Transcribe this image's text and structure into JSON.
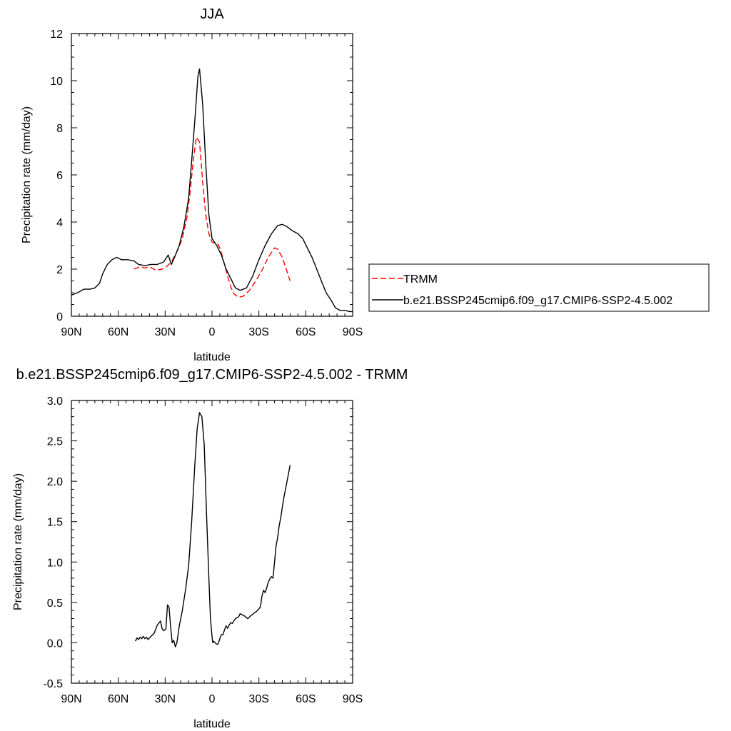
{
  "chart_data": [
    {
      "type": "line",
      "title": "JJA",
      "xlabel": "latitude",
      "ylabel": "Precipitation rate (mm/day)",
      "xlim": [
        90,
        -90
      ],
      "ylim": [
        0,
        12
      ],
      "x_ticks": [
        {
          "value": 90,
          "label": "90N"
        },
        {
          "value": 60,
          "label": "60N"
        },
        {
          "value": 30,
          "label": "30N"
        },
        {
          "value": 0,
          "label": "0"
        },
        {
          "value": -30,
          "label": "30S"
        },
        {
          "value": -60,
          "label": "60S"
        },
        {
          "value": -90,
          "label": "90S"
        }
      ],
      "y_ticks": [
        {
          "value": 0,
          "label": "0"
        },
        {
          "value": 2,
          "label": "2"
        },
        {
          "value": 4,
          "label": "4"
        },
        {
          "value": 6,
          "label": "6"
        },
        {
          "value": 8,
          "label": "8"
        },
        {
          "value": 10,
          "label": "10"
        },
        {
          "value": 12,
          "label": "12"
        }
      ],
      "grid": false,
      "legend_position": "right",
      "series": [
        {
          "name": "TRMM",
          "color": "#ff0000",
          "dash": true,
          "points": [
            [
              50,
              2.0
            ],
            [
              46,
              2.1
            ],
            [
              43,
              2.05
            ],
            [
              40,
              2.1
            ],
            [
              36,
              1.95
            ],
            [
              32,
              2.0
            ],
            [
              30,
              2.05
            ],
            [
              26,
              2.3
            ],
            [
              22,
              2.8
            ],
            [
              19,
              3.3
            ],
            [
              16,
              4.2
            ],
            [
              14,
              5.3
            ],
            [
              12,
              6.6
            ],
            [
              10,
              7.6
            ],
            [
              8,
              7.4
            ],
            [
              6,
              5.7
            ],
            [
              4,
              4.3
            ],
            [
              2,
              3.5
            ],
            [
              0,
              3.15
            ],
            [
              -2,
              3.1
            ],
            [
              -4,
              3.05
            ],
            [
              -6,
              2.7
            ],
            [
              -8,
              2.2
            ],
            [
              -10,
              1.7
            ],
            [
              -12,
              1.25
            ],
            [
              -14,
              0.95
            ],
            [
              -17,
              0.8
            ],
            [
              -20,
              0.85
            ],
            [
              -24,
              1.1
            ],
            [
              -28,
              1.5
            ],
            [
              -32,
              1.95
            ],
            [
              -36,
              2.5
            ],
            [
              -40,
              2.9
            ],
            [
              -42,
              2.85
            ],
            [
              -45,
              2.5
            ],
            [
              -48,
              1.9
            ],
            [
              -50,
              1.5
            ]
          ]
        },
        {
          "name": "b.e21.BSSP245cmip6.f09_g17.CMIP6-SSP2-4.5.002",
          "color": "#000000",
          "dash": false,
          "points": [
            [
              90,
              0.9
            ],
            [
              86,
              1.0
            ],
            [
              82,
              1.15
            ],
            [
              78,
              1.15
            ],
            [
              75,
              1.2
            ],
            [
              72,
              1.4
            ],
            [
              70,
              1.8
            ],
            [
              67,
              2.2
            ],
            [
              64,
              2.4
            ],
            [
              61,
              2.5
            ],
            [
              58,
              2.4
            ],
            [
              54,
              2.4
            ],
            [
              50,
              2.35
            ],
            [
              47,
              2.2
            ],
            [
              43,
              2.15
            ],
            [
              39,
              2.2
            ],
            [
              35,
              2.2
            ],
            [
              31,
              2.3
            ],
            [
              28,
              2.6
            ],
            [
              26,
              2.2
            ],
            [
              24,
              2.5
            ],
            [
              21,
              3.0
            ],
            [
              18,
              3.8
            ],
            [
              15,
              5.0
            ],
            [
              13,
              6.6
            ],
            [
              11,
              8.3
            ],
            [
              9,
              10.2
            ],
            [
              8,
              10.5
            ],
            [
              6,
              9.0
            ],
            [
              4,
              6.5
            ],
            [
              2,
              4.3
            ],
            [
              0,
              3.3
            ],
            [
              -3,
              3.0
            ],
            [
              -6,
              2.6
            ],
            [
              -9,
              2.0
            ],
            [
              -12,
              1.6
            ],
            [
              -15,
              1.2
            ],
            [
              -18,
              1.1
            ],
            [
              -22,
              1.2
            ],
            [
              -26,
              1.7
            ],
            [
              -30,
              2.4
            ],
            [
              -34,
              3.0
            ],
            [
              -38,
              3.5
            ],
            [
              -42,
              3.85
            ],
            [
              -45,
              3.9
            ],
            [
              -48,
              3.8
            ],
            [
              -51,
              3.65
            ],
            [
              -55,
              3.5
            ],
            [
              -58,
              3.3
            ],
            [
              -61,
              2.9
            ],
            [
              -64,
              2.5
            ],
            [
              -67,
              2.0
            ],
            [
              -70,
              1.5
            ],
            [
              -73,
              1.0
            ],
            [
              -76,
              0.7
            ],
            [
              -79,
              0.35
            ],
            [
              -82,
              0.25
            ],
            [
              -85,
              0.25
            ],
            [
              -88,
              0.2
            ],
            [
              -90,
              0.2
            ]
          ]
        }
      ]
    },
    {
      "type": "line",
      "title": "b.e21.BSSP245cmip6.f09_g17.CMIP6-SSP2-4.5.002 - TRMM",
      "xlabel": "latitude",
      "ylabel": "Precipitation rate (mm/day)",
      "xlim": [
        90,
        -90
      ],
      "ylim": [
        -0.5,
        3.0
      ],
      "x_ticks": [
        {
          "value": 90,
          "label": "90N"
        },
        {
          "value": 60,
          "label": "60N"
        },
        {
          "value": 30,
          "label": "30N"
        },
        {
          "value": 0,
          "label": "0"
        },
        {
          "value": -30,
          "label": "30S"
        },
        {
          "value": -60,
          "label": "60S"
        },
        {
          "value": -90,
          "label": "90S"
        }
      ],
      "y_ticks": [
        {
          "value": -0.5,
          "label": "-0.5"
        },
        {
          "value": 0.0,
          "label": "0.0"
        },
        {
          "value": 0.5,
          "label": "0.5"
        },
        {
          "value": 1.0,
          "label": "1.0"
        },
        {
          "value": 1.5,
          "label": "1.5"
        },
        {
          "value": 2.0,
          "label": "2.0"
        },
        {
          "value": 2.5,
          "label": "2.5"
        },
        {
          "value": 3.0,
          "label": "3.0"
        }
      ],
      "grid": false,
      "series": [
        {
          "color": "#000000",
          "dash": false,
          "points": [
            [
              49,
              0.02
            ],
            [
              48,
              0.06
            ],
            [
              47,
              0.04
            ],
            [
              46,
              0.07
            ],
            [
              45,
              0.05
            ],
            [
              44,
              0.08
            ],
            [
              43,
              0.05
            ],
            [
              42,
              0.07
            ],
            [
              41,
              0.04
            ],
            [
              39,
              0.08
            ],
            [
              37,
              0.12
            ],
            [
              35,
              0.22
            ],
            [
              33,
              0.27
            ],
            [
              32,
              0.18
            ],
            [
              31,
              0.15
            ],
            [
              29.5,
              0.17
            ],
            [
              28.5,
              0.47
            ],
            [
              27.5,
              0.44
            ],
            [
              26.5,
              0.2
            ],
            [
              25.5,
              0.0
            ],
            [
              24.5,
              0.03
            ],
            [
              23.5,
              -0.05
            ],
            [
              22.5,
              0.0
            ],
            [
              21,
              0.2
            ],
            [
              19,
              0.4
            ],
            [
              17,
              0.65
            ],
            [
              15,
              0.95
            ],
            [
              13,
              1.5
            ],
            [
              11,
              2.2
            ],
            [
              9.5,
              2.65
            ],
            [
              8,
              2.85
            ],
            [
              6.5,
              2.8
            ],
            [
              5,
              2.45
            ],
            [
              3.5,
              1.6
            ],
            [
              2,
              0.8
            ],
            [
              1,
              0.3
            ],
            [
              0,
              0.08
            ],
            [
              -0.5,
              0.0
            ],
            [
              -1,
              0.02
            ],
            [
              -2,
              0.0
            ],
            [
              -3,
              -0.02
            ],
            [
              -4,
              -0.01
            ],
            [
              -5,
              0.05
            ],
            [
              -6,
              0.1
            ],
            [
              -7,
              0.1
            ],
            [
              -8,
              0.16
            ],
            [
              -9,
              0.21
            ],
            [
              -10,
              0.18
            ],
            [
              -11,
              0.22
            ],
            [
              -12,
              0.25
            ],
            [
              -13,
              0.24
            ],
            [
              -14,
              0.27
            ],
            [
              -15,
              0.3
            ],
            [
              -16,
              0.31
            ],
            [
              -17,
              0.32
            ],
            [
              -18,
              0.36
            ],
            [
              -19,
              0.35
            ],
            [
              -20,
              0.34
            ],
            [
              -21,
              0.33
            ],
            [
              -22,
              0.31
            ],
            [
              -23,
              0.3
            ],
            [
              -24,
              0.32
            ],
            [
              -25,
              0.34
            ],
            [
              -26,
              0.35
            ],
            [
              -27,
              0.37
            ],
            [
              -28,
              0.38
            ],
            [
              -29,
              0.4
            ],
            [
              -30,
              0.42
            ],
            [
              -31,
              0.45
            ],
            [
              -32,
              0.58
            ],
            [
              -33,
              0.65
            ],
            [
              -34,
              0.62
            ],
            [
              -35,
              0.68
            ],
            [
              -36,
              0.75
            ],
            [
              -37,
              0.79
            ],
            [
              -38,
              0.82
            ],
            [
              -39,
              0.8
            ],
            [
              -40,
              1.0
            ],
            [
              -41,
              1.2
            ],
            [
              -42,
              1.3
            ],
            [
              -43,
              1.45
            ],
            [
              -44,
              1.55
            ],
            [
              -45,
              1.68
            ],
            [
              -46,
              1.8
            ],
            [
              -47,
              1.9
            ],
            [
              -48,
              2.0
            ],
            [
              -49,
              2.1
            ],
            [
              -50,
              2.2
            ]
          ]
        }
      ]
    }
  ]
}
